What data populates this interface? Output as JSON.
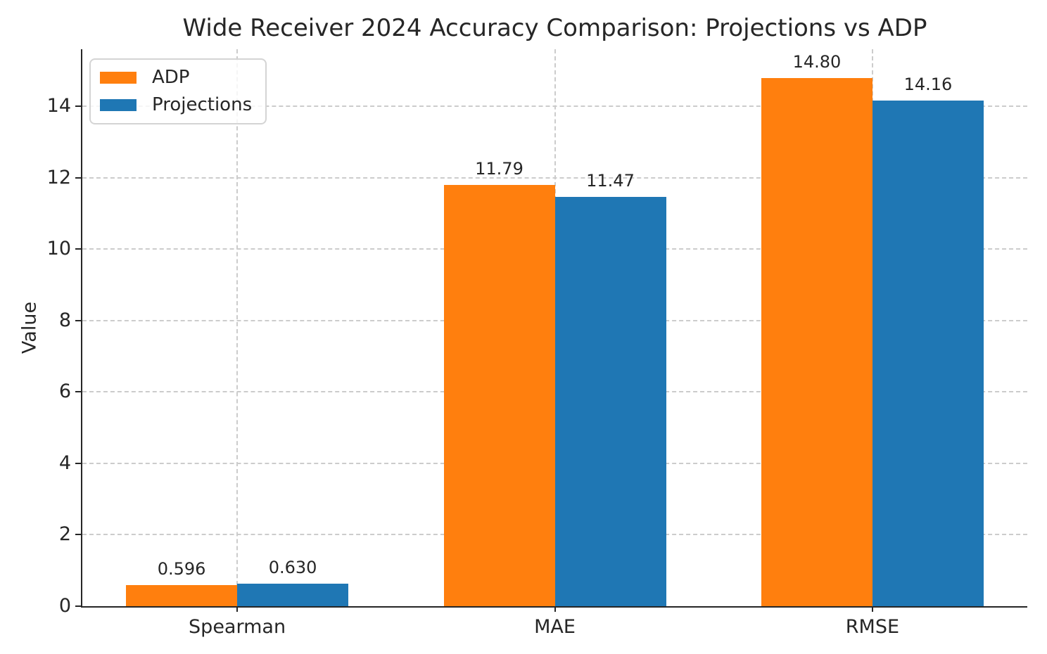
{
  "chart_data": {
    "type": "bar",
    "title": "Wide Receiver 2024 Accuracy Comparison: Projections vs ADP",
    "xlabel": "",
    "ylabel": "Value",
    "categories": [
      "Spearman",
      "MAE",
      "RMSE"
    ],
    "series": [
      {
        "name": "ADP",
        "color": "#ff7f0e",
        "values": [
          0.596,
          11.79,
          14.8
        ],
        "labels": [
          "0.596",
          "11.79",
          "14.80"
        ]
      },
      {
        "name": "Projections",
        "color": "#1f77b4",
        "values": [
          0.63,
          11.47,
          14.16
        ],
        "labels": [
          "0.630",
          "11.47",
          "14.16"
        ]
      }
    ],
    "yticks": [
      0,
      2,
      4,
      6,
      8,
      10,
      12,
      14
    ],
    "ylim": [
      0,
      15.6
    ],
    "xlim": [
      -0.4875,
      2.4875
    ],
    "bar_width": 0.35,
    "grid": true,
    "grid_style": "dashed",
    "legend_position": "upper left",
    "colors": {
      "text": "#262626",
      "grid": "#cccccc",
      "spine": "#262626",
      "background": "#ffffff"
    }
  }
}
